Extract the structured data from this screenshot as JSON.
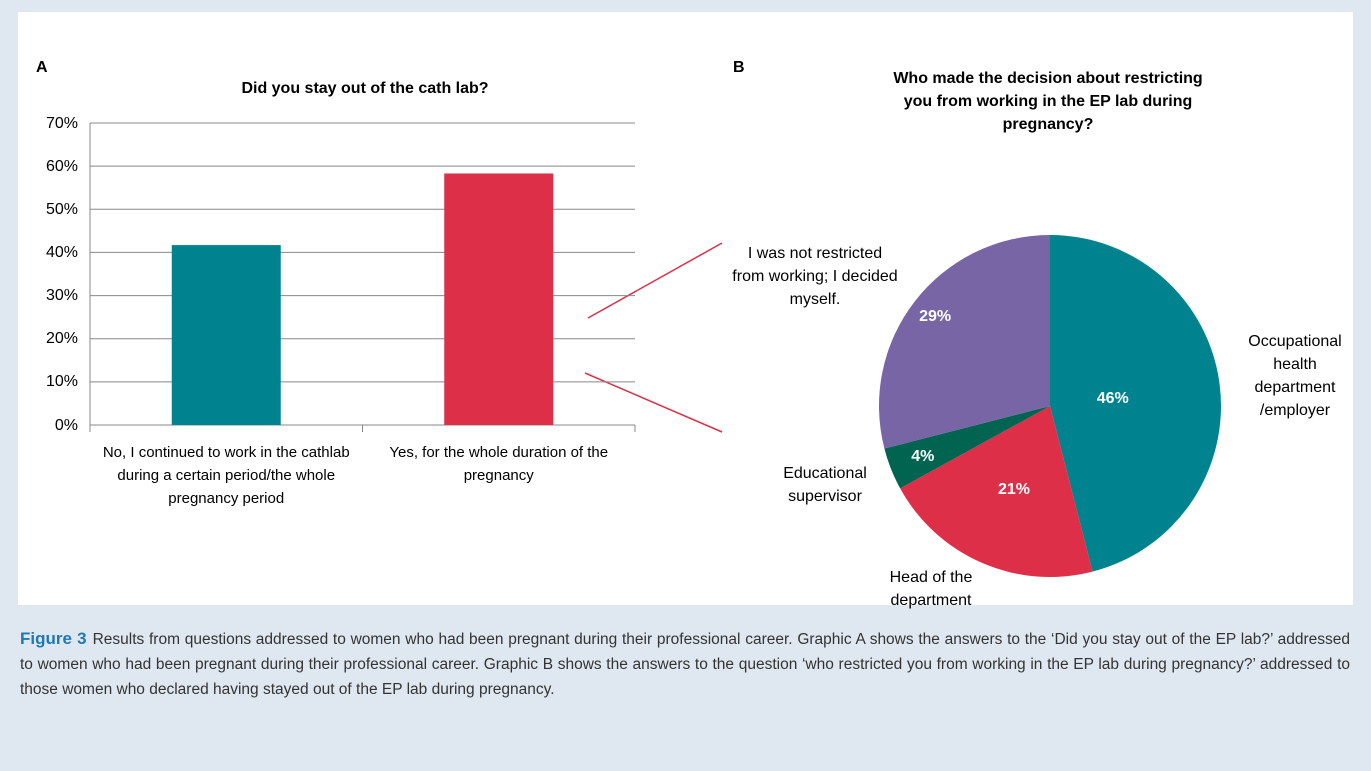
{
  "chart_data": [
    {
      "type": "bar",
      "panel_label": "A",
      "title": "Did you stay out of the cath lab?",
      "categories": [
        "No, I continued to work in the cathlab during a certain period/the whole pregnancy period",
        "Yes, for the whole duration of the pregnancy"
      ],
      "values": [
        41.7,
        58.3
      ],
      "colors": [
        "#00838f",
        "#de2f48"
      ],
      "ylim": [
        0,
        70
      ],
      "yticks": [
        {
          "value": 0,
          "label": "0%"
        },
        {
          "value": 10,
          "label": "10%"
        },
        {
          "value": 20,
          "label": "20%"
        },
        {
          "value": 30,
          "label": "30%"
        },
        {
          "value": 40,
          "label": "40%"
        },
        {
          "value": 50,
          "label": "50%"
        },
        {
          "value": 60,
          "label": "60%"
        },
        {
          "value": 70,
          "label": "70%"
        }
      ],
      "grid": true
    },
    {
      "type": "pie",
      "panel_label": "B",
      "title": "Who made the decision about restricting you from working in the EP lab during pregnancy?",
      "categories": [
        "Occupational health department /employer",
        "Head of the department",
        "Educational supervisor",
        "I was not restricted from working; I decided myself."
      ],
      "values": [
        46,
        21,
        4,
        29
      ],
      "value_labels": [
        "46%",
        "21%",
        "4%",
        "29%"
      ],
      "colors": [
        "#00838f",
        "#de2f48",
        "#006450",
        "#7765a5"
      ]
    }
  ],
  "caption": {
    "label": "Figure 3",
    "text": "Results from questions addressed to women who had been pregnant during their professional career. Graphic A shows the answers to the ‘Did you stay out of the EP lab?’ addressed to women who had been pregnant during their professional career. Graphic B shows the answers to the question ‘who restricted you from working in the EP lab during pregnancy?’ addressed to those women who declared having stayed out of the EP lab during pregnancy."
  }
}
